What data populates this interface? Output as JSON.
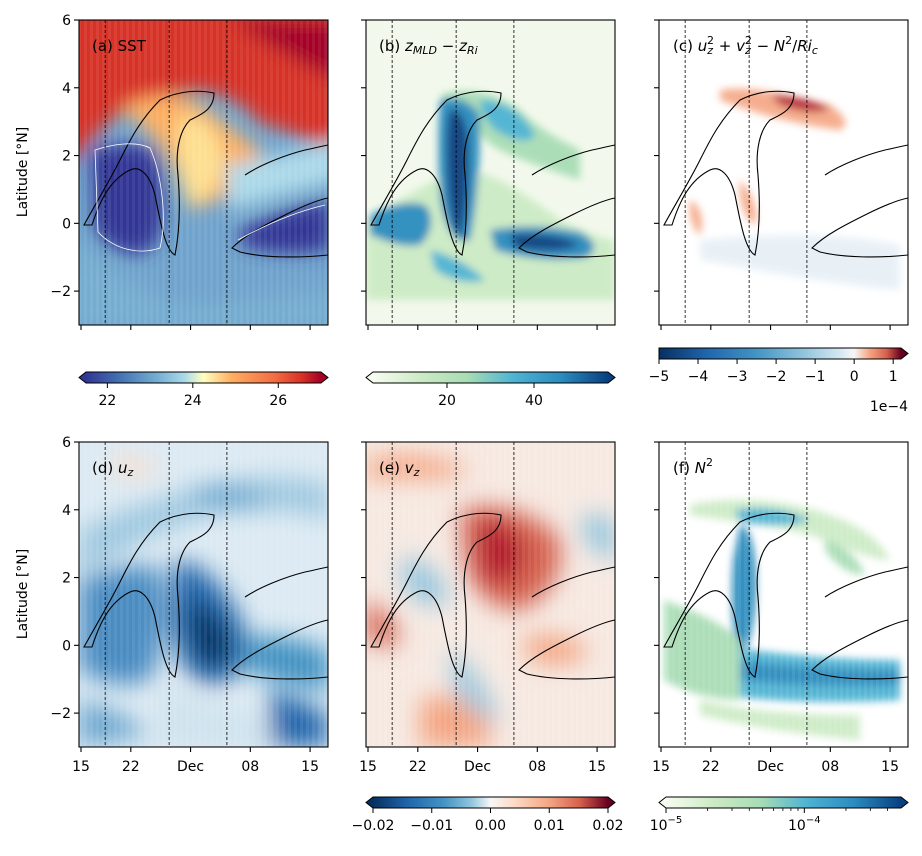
{
  "chart_data": [
    {
      "type": "heatmap",
      "panel": "a",
      "label": "(a) SST",
      "ylabel": "Latitude [°N]",
      "ylim": [
        -3,
        6
      ],
      "y_ticks": [
        "−2",
        "0",
        "2",
        "4",
        "6"
      ],
      "x_ticks": [
        "",
        "",
        "",
        "",
        ""
      ],
      "vlines": [
        "Nov 19",
        "Nov 29",
        "Dec 04"
      ],
      "colormap": "RdYlBu_r",
      "colorbar": {
        "ticks": [
          "22",
          "24",
          "26"
        ],
        "range": [
          21.5,
          27
        ],
        "extend": "both"
      },
      "values": {
        "cold_tongue_core": 21.5,
        "equatorial_band": 23.5,
        "north_warm": 26.5
      }
    },
    {
      "type": "heatmap",
      "panel": "b",
      "label": "(b) z_MLD − z_Ri",
      "label_parts": {
        "main": "(b) ",
        "t1": "z",
        "s1": "MLD",
        "op": " − ",
        "t2": "z",
        "s2": "Ri"
      },
      "ylim": [
        -3,
        6
      ],
      "y_ticks": [
        "",
        "",
        "",
        "",
        ""
      ],
      "x_ticks": [
        "",
        "",
        "",
        "",
        ""
      ],
      "vlines": [
        "Nov 19",
        "Nov 29",
        "Dec 04"
      ],
      "colormap": "GnBu",
      "colorbar": {
        "ticks": [
          "20",
          "40"
        ],
        "range": [
          3,
          57
        ],
        "extend": "both"
      }
    },
    {
      "type": "heatmap",
      "panel": "c",
      "label": "(c) u_z² + v_z² − N²/Ri_c",
      "label_parts": {
        "main": "(c) ",
        "a": "u",
        "asub": "z",
        "asup": "2",
        "plus": " + ",
        "b": "v",
        "bsub": "z",
        "bsup": "2",
        "minus": " − ",
        "c": "N",
        "csup": "2",
        "slash": "/",
        "d": "Ri",
        "dsub": "c"
      },
      "ylim": [
        -3,
        6
      ],
      "y_ticks": [
        "",
        "",
        "",
        "",
        ""
      ],
      "x_ticks": [
        "",
        "",
        "",
        "",
        ""
      ],
      "vlines": [
        "Nov 19",
        "Nov 29",
        "Dec 04"
      ],
      "colormap": "RdBu_r",
      "colorbar": {
        "ticks": [
          "−5",
          "−4",
          "−3",
          "−2",
          "−1",
          "0",
          "1"
        ],
        "range": [
          -5,
          1.2
        ],
        "extend": "max",
        "offset": "1e−4"
      }
    },
    {
      "type": "heatmap",
      "panel": "d",
      "label": "(d) u_z",
      "label_parts": {
        "main": "(d) ",
        "t": "u",
        "s": "z"
      },
      "ylabel": "Latitude [°N]",
      "ylim": [
        -3,
        6
      ],
      "y_ticks": [
        "−2",
        "0",
        "2",
        "4",
        "6"
      ],
      "x_ticks": [
        "15",
        "22",
        "Dec",
        "08",
        "15"
      ],
      "vlines": [
        "Nov 19",
        "Nov 29",
        "Dec 04"
      ],
      "colormap": "RdBu_r"
    },
    {
      "type": "heatmap",
      "panel": "e",
      "label": "(e) v_z",
      "label_parts": {
        "main": "(e) ",
        "t": "v",
        "s": "z"
      },
      "ylim": [
        -3,
        6
      ],
      "y_ticks": [
        "",
        "",
        "",
        "",
        ""
      ],
      "x_ticks": [
        "15",
        "22",
        "Dec",
        "08",
        "15"
      ],
      "vlines": [
        "Nov 19",
        "Nov 29",
        "Dec 04"
      ],
      "colormap": "RdBu_r",
      "colorbar": {
        "ticks": [
          "−0.02",
          "−0.01",
          "0.00",
          "0.01",
          "0.02"
        ],
        "range": [
          -0.02,
          0.02
        ],
        "extend": "both"
      }
    },
    {
      "type": "heatmap",
      "panel": "f",
      "label": "(f) N²",
      "label_parts": {
        "main": "(f) ",
        "t": "N",
        "sup": "2"
      },
      "ylim": [
        -3,
        6
      ],
      "y_ticks": [
        "",
        "",
        "",
        "",
        ""
      ],
      "x_ticks": [
        "15",
        "22",
        "Dec",
        "08",
        "15"
      ],
      "vlines": [
        "Nov 19",
        "Nov 29",
        "Dec 04"
      ],
      "colormap": "GnBu",
      "colorbar": {
        "ticks": [
          "10",
          "10"
        ],
        "tick_exps": [
          "−5",
          "−4"
        ],
        "scale": "log",
        "range": [
          1e-05,
          0.0005
        ],
        "extend": "both"
      }
    }
  ]
}
